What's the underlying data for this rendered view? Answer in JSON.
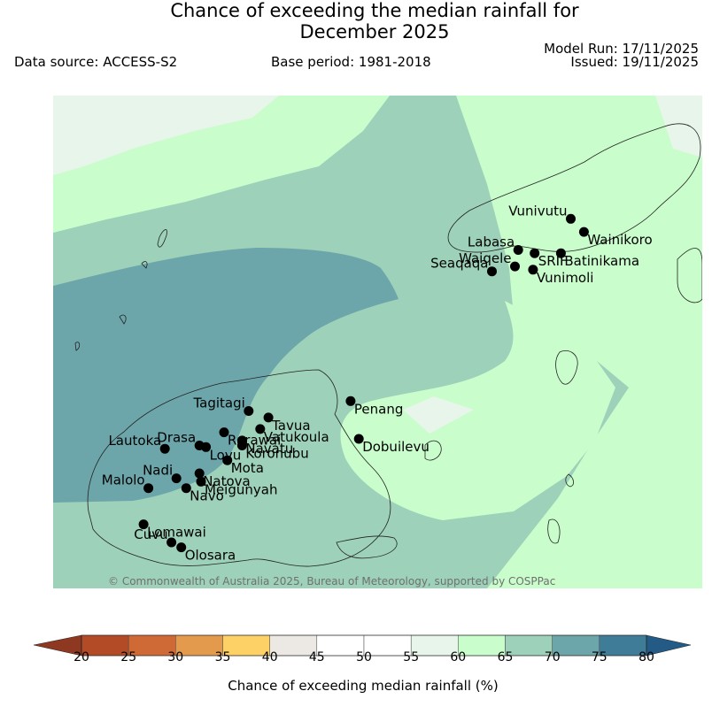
{
  "title": {
    "line1": "Chance of exceeding the median rainfall for",
    "line2": "December 2025"
  },
  "meta": {
    "data_source": "Data source: ACCESS-S2",
    "base_period": "Base period: 1981-2018",
    "model_run": "Model Run: 17/11/2025",
    "issued": "Issued: 19/11/2025"
  },
  "copyright": "© Commonwealth of Australia 2025, Bureau of Meteorology, supported by COSPPac",
  "stations": [
    {
      "name": "Vunivutu",
      "lon": 180.05,
      "lat": -16.25
    },
    {
      "name": "Wainikoro",
      "lon": 180.13,
      "lat": -16.33
    },
    {
      "name": "Labasa",
      "lon": 179.73,
      "lat": -16.44
    },
    {
      "name": "SRIF",
      "lon": 179.83,
      "lat": -16.46
    },
    {
      "name": "Batinikama",
      "lon": 179.99,
      "lat": -16.46
    },
    {
      "name": "Waiqele",
      "lon": 179.71,
      "lat": -16.54
    },
    {
      "name": "Vunimoli",
      "lon": 179.82,
      "lat": -16.56
    },
    {
      "name": "Seaqaqa",
      "lon": 179.57,
      "lat": -16.57
    },
    {
      "name": "Tagitagi",
      "lon": 178.09,
      "lat": -17.42
    },
    {
      "name": "Tavua",
      "lon": 178.21,
      "lat": -17.46
    },
    {
      "name": "Penang",
      "lon": 178.71,
      "lat": -17.36
    },
    {
      "name": "Vatukoula",
      "lon": 178.16,
      "lat": -17.53
    },
    {
      "name": "Rarawai",
      "lon": 177.94,
      "lat": -17.55
    },
    {
      "name": "Navatu",
      "lon": 178.05,
      "lat": -17.6
    },
    {
      "name": "Koronubu",
      "lon": 178.05,
      "lat": -17.63
    },
    {
      "name": "Drasa",
      "lon": 177.79,
      "lat": -17.63
    },
    {
      "name": "Lautoka",
      "lon": 177.58,
      "lat": -17.65
    },
    {
      "name": "Lovu",
      "lon": 177.83,
      "lat": -17.64
    },
    {
      "name": "Dobuilevu",
      "lon": 178.76,
      "lat": -17.59
    },
    {
      "name": "Mota",
      "lon": 177.96,
      "lat": -17.72
    },
    {
      "name": "Natova",
      "lon": 177.79,
      "lat": -17.8
    },
    {
      "name": "Nadi",
      "lon": 177.65,
      "lat": -17.83
    },
    {
      "name": "Meigunyah",
      "lon": 177.8,
      "lat": -17.85
    },
    {
      "name": "Malolo",
      "lon": 177.48,
      "lat": -17.89
    },
    {
      "name": "Navo",
      "lon": 177.71,
      "lat": -17.89
    },
    {
      "name": "Lomawai",
      "lon": 177.45,
      "lat": -18.11
    },
    {
      "name": "Cuvu",
      "lon": 177.62,
      "lat": -18.22
    },
    {
      "name": "Olosara",
      "lon": 177.68,
      "lat": -18.25
    }
  ],
  "colorbar": {
    "label": "Chance of exceeding median rainfall (%)",
    "ticks": [
      "20",
      "25",
      "30",
      "35",
      "40",
      "45",
      "50",
      "55",
      "60",
      "65",
      "70",
      "75",
      "80"
    ],
    "bins": [
      {
        "from": 20,
        "to": 25,
        "color": "#b34b27"
      },
      {
        "from": 25,
        "to": 30,
        "color": "#cf6a36"
      },
      {
        "from": 30,
        "to": 35,
        "color": "#e39a4c"
      },
      {
        "from": 35,
        "to": 40,
        "color": "#fdd166"
      },
      {
        "from": 40,
        "to": 45,
        "color": "#ece9e5"
      },
      {
        "from": 45,
        "to": 50,
        "color": "#ffffff"
      },
      {
        "from": 50,
        "to": 55,
        "color": "#ffffff"
      },
      {
        "from": 55,
        "to": 60,
        "color": "#e8f5ea"
      },
      {
        "from": 60,
        "to": 65,
        "color": "#c9fdcb"
      },
      {
        "from": 65,
        "to": 70,
        "color": "#9dd1b9"
      },
      {
        "from": 70,
        "to": 75,
        "color": "#6da6aa"
      },
      {
        "from": 75,
        "to": 80,
        "color": "#3f7c98"
      }
    ],
    "under_color": "#8e3822",
    "over_color": "#245b86"
  },
  "colors": {
    "p55": "#e8f5ea",
    "p60": "#c9fdcb",
    "p65": "#9dd1b9",
    "p70": "#6da6aa",
    "station": "#000000"
  }
}
